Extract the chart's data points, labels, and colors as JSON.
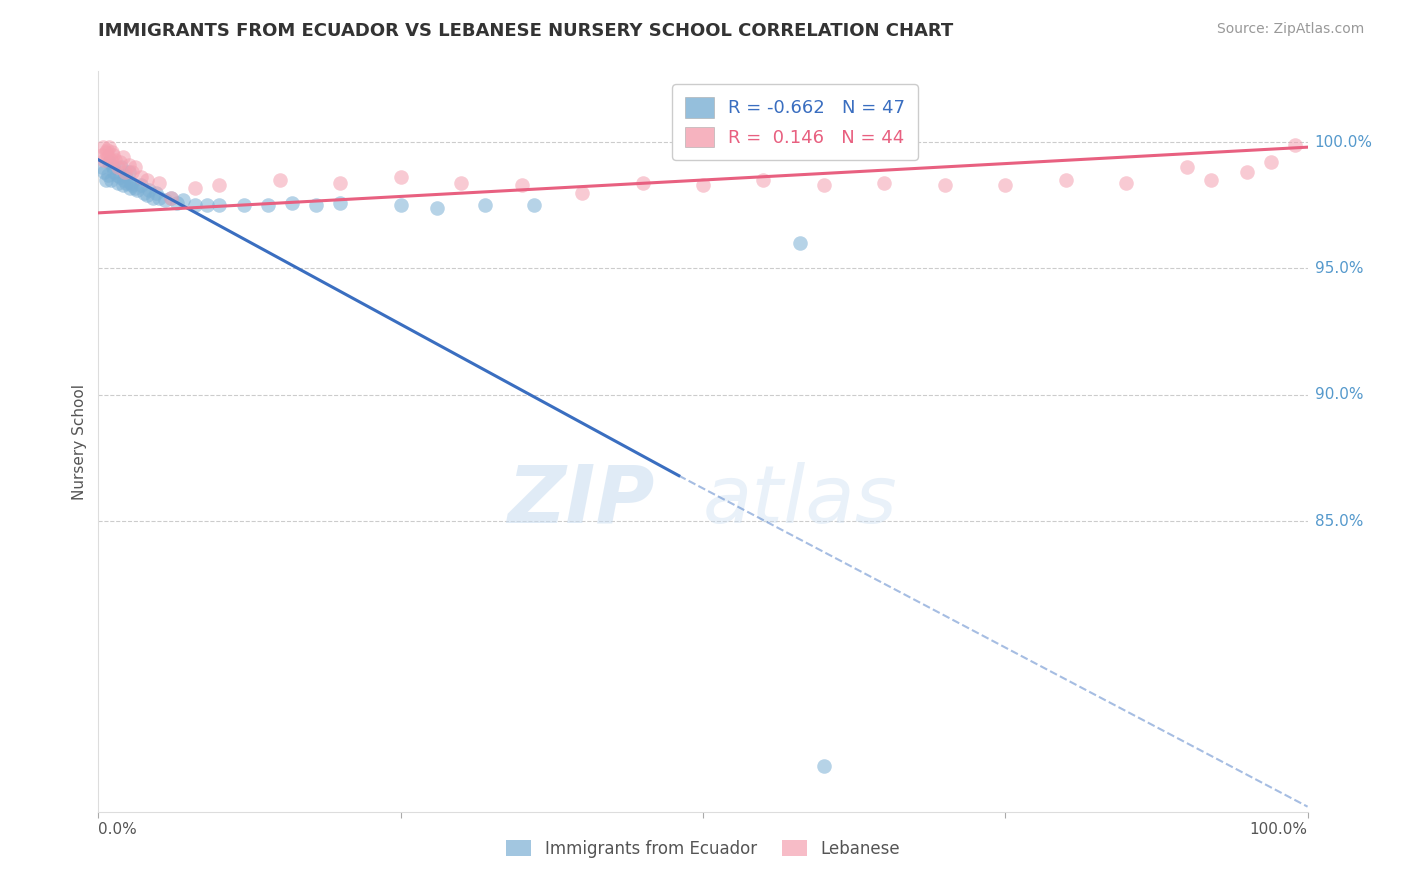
{
  "title": "IMMIGRANTS FROM ECUADOR VS LEBANESE NURSERY SCHOOL CORRELATION CHART",
  "source": "Source: ZipAtlas.com",
  "ylabel": "Nursery School",
  "xlim": [
    0.0,
    1.0
  ],
  "ylim": [
    0.735,
    1.028
  ],
  "legend_r_blue": "-0.662",
  "legend_n_blue": "47",
  "legend_r_pink": "0.146",
  "legend_n_pink": "44",
  "blue_color": "#7BAFD4",
  "pink_color": "#F4A0B0",
  "blue_line_color": "#3A6EC0",
  "pink_line_color": "#E86080",
  "watermark_zip": "ZIP",
  "watermark_atlas": "atlas",
  "ytick_positions": [
    0.85,
    0.9,
    0.95,
    1.0
  ],
  "ytick_labels": [
    "85.0%",
    "90.0%",
    "95.0%",
    "100.0%"
  ],
  "blue_line_start_x": 0.0,
  "blue_line_start_y": 0.993,
  "blue_line_solid_end_x": 0.48,
  "blue_line_solid_end_y": 0.868,
  "blue_line_dashed_end_x": 1.0,
  "blue_line_dashed_end_y": 0.737,
  "pink_line_start_x": 0.0,
  "pink_line_start_y": 0.972,
  "pink_line_end_x": 1.0,
  "pink_line_end_y": 0.998,
  "blue_scatter_x": [
    0.003,
    0.005,
    0.006,
    0.008,
    0.009,
    0.01,
    0.012,
    0.013,
    0.015,
    0.016,
    0.018,
    0.019,
    0.02,
    0.021,
    0.022,
    0.023,
    0.025,
    0.026,
    0.027,
    0.028,
    0.03,
    0.032,
    0.035,
    0.038,
    0.04,
    0.042,
    0.045,
    0.048,
    0.05,
    0.055,
    0.06,
    0.065,
    0.07,
    0.08,
    0.09,
    0.1,
    0.12,
    0.14,
    0.16,
    0.18,
    0.2,
    0.25,
    0.28,
    0.32,
    0.36,
    0.58,
    0.6
  ],
  "blue_scatter_y": [
    0.99,
    0.988,
    0.985,
    0.987,
    0.992,
    0.985,
    0.99,
    0.988,
    0.987,
    0.984,
    0.986,
    0.99,
    0.983,
    0.985,
    0.987,
    0.984,
    0.988,
    0.982,
    0.984,
    0.983,
    0.982,
    0.981,
    0.983,
    0.98,
    0.979,
    0.981,
    0.978,
    0.98,
    0.978,
    0.977,
    0.978,
    0.976,
    0.977,
    0.975,
    0.975,
    0.975,
    0.975,
    0.975,
    0.976,
    0.975,
    0.976,
    0.975,
    0.974,
    0.975,
    0.975,
    0.96,
    0.753
  ],
  "pink_scatter_x": [
    0.003,
    0.004,
    0.005,
    0.006,
    0.007,
    0.008,
    0.009,
    0.01,
    0.011,
    0.012,
    0.014,
    0.016,
    0.018,
    0.02,
    0.022,
    0.025,
    0.028,
    0.03,
    0.035,
    0.04,
    0.05,
    0.06,
    0.08,
    0.1,
    0.15,
    0.2,
    0.25,
    0.3,
    0.35,
    0.4,
    0.45,
    0.5,
    0.55,
    0.6,
    0.65,
    0.7,
    0.75,
    0.8,
    0.85,
    0.9,
    0.92,
    0.95,
    0.97,
    0.99
  ],
  "pink_scatter_y": [
    0.995,
    0.998,
    0.993,
    0.996,
    0.997,
    0.994,
    0.998,
    0.993,
    0.996,
    0.995,
    0.993,
    0.99,
    0.992,
    0.994,
    0.988,
    0.991,
    0.988,
    0.99,
    0.986,
    0.985,
    0.984,
    0.978,
    0.982,
    0.983,
    0.985,
    0.984,
    0.986,
    0.984,
    0.983,
    0.98,
    0.984,
    0.983,
    0.985,
    0.983,
    0.984,
    0.983,
    0.983,
    0.985,
    0.984,
    0.99,
    0.985,
    0.988,
    0.992,
    0.999
  ]
}
